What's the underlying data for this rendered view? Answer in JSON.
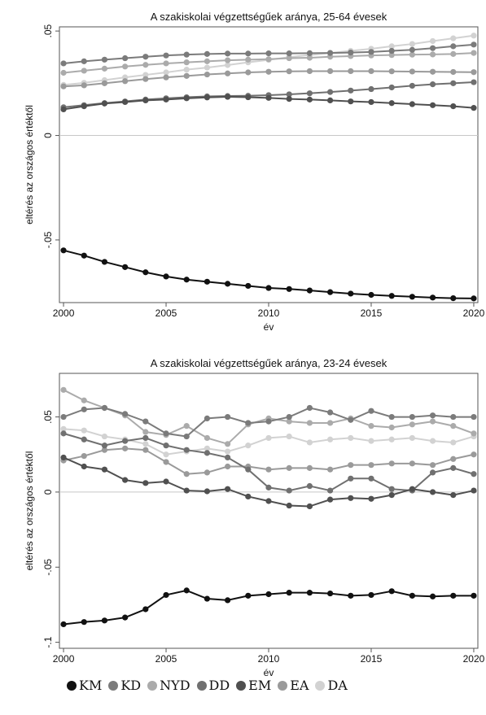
{
  "chart_data": [
    {
      "type": "line",
      "title": "A szakiskolai végzettségűek aránya, 25-64 évesek",
      "xlabel": "év",
      "ylabel": "eltérés az országos értéktől",
      "x": [
        2000,
        2001,
        2002,
        2003,
        2004,
        2005,
        2006,
        2007,
        2008,
        2009,
        2010,
        2011,
        2012,
        2013,
        2014,
        2015,
        2016,
        2017,
        2018,
        2019,
        2020
      ],
      "xticks": [
        2000,
        2005,
        2010,
        2015,
        2020
      ],
      "xtick_labels": [
        "2000",
        "2005",
        "2010",
        "2015",
        "2020"
      ],
      "yticks": [
        -0.05,
        0,
        0.05
      ],
      "ytick_labels": [
        "-.05",
        "0",
        ".05"
      ],
      "ylim": [
        -0.08,
        0.052
      ],
      "xlim": [
        1999.8,
        2020.2
      ],
      "grid": false,
      "series": [
        {
          "name": "KM",
          "color": "#111111",
          "values": [
            -0.055,
            -0.0575,
            -0.0605,
            -0.063,
            -0.0655,
            -0.0675,
            -0.069,
            -0.07,
            -0.071,
            -0.072,
            -0.073,
            -0.0735,
            -0.0742,
            -0.075,
            -0.0757,
            -0.0763,
            -0.0768,
            -0.0772,
            -0.0776,
            -0.0779,
            -0.078
          ]
        },
        {
          "name": "KD",
          "color": "#7b7b7b",
          "values": [
            0.0345,
            0.0355,
            0.0363,
            0.037,
            0.0377,
            0.0383,
            0.0387,
            0.039,
            0.0392,
            0.0392,
            0.0393,
            0.0393,
            0.0394,
            0.0395,
            0.0397,
            0.04,
            0.0405,
            0.041,
            0.0418,
            0.0427,
            0.0435
          ]
        },
        {
          "name": "NYD",
          "color": "#ababab",
          "values": [
            0.03,
            0.031,
            0.032,
            0.033,
            0.0338,
            0.0345,
            0.035,
            0.0355,
            0.036,
            0.0363,
            0.0365,
            0.037,
            0.0372,
            0.0377,
            0.038,
            0.0383,
            0.0385,
            0.0387,
            0.0388,
            0.039,
            0.0395
          ]
        },
        {
          "name": "DD",
          "color": "#707070",
          "values": [
            0.0135,
            0.0145,
            0.0155,
            0.0163,
            0.0172,
            0.0178,
            0.0183,
            0.0187,
            0.0189,
            0.019,
            0.0193,
            0.0197,
            0.0202,
            0.0208,
            0.0215,
            0.0222,
            0.023,
            0.0238,
            0.0245,
            0.025,
            0.0255
          ]
        },
        {
          "name": "EM",
          "color": "#505050",
          "values": [
            0.0125,
            0.014,
            0.0153,
            0.016,
            0.0168,
            0.0172,
            0.0178,
            0.0182,
            0.0185,
            0.0183,
            0.018,
            0.0175,
            0.0172,
            0.0168,
            0.0163,
            0.016,
            0.0155,
            0.015,
            0.0145,
            0.014,
            0.0132
          ]
        },
        {
          "name": "EA",
          "color": "#9a9a9a",
          "values": [
            0.0235,
            0.024,
            0.025,
            0.026,
            0.027,
            0.0278,
            0.0285,
            0.0292,
            0.0297,
            0.0302,
            0.0305,
            0.0307,
            0.0308,
            0.0308,
            0.0308,
            0.0308,
            0.0307,
            0.0306,
            0.0305,
            0.0304,
            0.0303
          ]
        },
        {
          "name": "DA",
          "color": "#d2d2d2",
          "values": [
            0.0242,
            0.0252,
            0.0265,
            0.0278,
            0.029,
            0.0302,
            0.0315,
            0.0325,
            0.0337,
            0.035,
            0.0362,
            0.0375,
            0.0385,
            0.0395,
            0.0405,
            0.0415,
            0.0427,
            0.0438,
            0.0452,
            0.0465,
            0.0478
          ]
        }
      ]
    },
    {
      "type": "line",
      "title": "A szakiskolai végzettségűek aránya, 23-24 évesek",
      "xlabel": "év",
      "ylabel": "eltérés az országos értéktől",
      "x": [
        2000,
        2001,
        2002,
        2003,
        2004,
        2005,
        2006,
        2007,
        2008,
        2009,
        2010,
        2011,
        2012,
        2013,
        2014,
        2015,
        2016,
        2017,
        2018,
        2019,
        2020
      ],
      "xticks": [
        2000,
        2005,
        2010,
        2015,
        2020
      ],
      "xtick_labels": [
        "2000",
        "2005",
        "2010",
        "2015",
        "2020"
      ],
      "yticks": [
        -0.1,
        -0.05,
        0,
        0.05
      ],
      "ytick_labels": [
        "-.1",
        "-.05",
        "0",
        ".05"
      ],
      "ylim": [
        -0.104,
        0.079
      ],
      "xlim": [
        1999.8,
        2020.2
      ],
      "grid": false,
      "series": [
        {
          "name": "KM",
          "color": "#111111",
          "values": [
            -0.088,
            -0.0865,
            -0.0855,
            -0.0835,
            -0.078,
            -0.0685,
            -0.0655,
            -0.071,
            -0.072,
            -0.069,
            -0.068,
            -0.067,
            -0.067,
            -0.0675,
            -0.069,
            -0.0685,
            -0.066,
            -0.069,
            -0.0695,
            -0.069,
            -0.069
          ]
        },
        {
          "name": "KD",
          "color": "#7b7b7b",
          "values": [
            0.05,
            0.055,
            0.056,
            0.052,
            0.047,
            0.039,
            0.037,
            0.049,
            0.05,
            0.046,
            0.047,
            0.05,
            0.056,
            0.053,
            0.048,
            0.054,
            0.05,
            0.05,
            0.051,
            0.05,
            0.05
          ]
        },
        {
          "name": "NYD",
          "color": "#ababab",
          "values": [
            0.068,
            0.061,
            0.056,
            0.051,
            0.04,
            0.038,
            0.044,
            0.036,
            0.032,
            0.045,
            0.049,
            0.047,
            0.046,
            0.046,
            0.049,
            0.044,
            0.043,
            0.045,
            0.047,
            0.044,
            0.039
          ]
        },
        {
          "name": "DD",
          "color": "#707070",
          "values": [
            0.039,
            0.035,
            0.031,
            0.034,
            0.036,
            0.031,
            0.028,
            0.026,
            0.023,
            0.015,
            0.003,
            0.001,
            0.004,
            0.001,
            0.009,
            0.009,
            0.002,
            0.001,
            0.013,
            0.016,
            0.012
          ]
        },
        {
          "name": "EM",
          "color": "#505050",
          "values": [
            0.023,
            0.017,
            0.015,
            0.008,
            0.006,
            0.007,
            0.001,
            0.0005,
            0.002,
            -0.003,
            -0.006,
            -0.009,
            -0.0095,
            -0.005,
            -0.004,
            -0.0045,
            -0.002,
            0.002,
            0.0,
            -0.002,
            0.001
          ]
        },
        {
          "name": "EA",
          "color": "#9a9a9a",
          "values": [
            0.021,
            0.024,
            0.028,
            0.029,
            0.028,
            0.02,
            0.012,
            0.013,
            0.017,
            0.017,
            0.015,
            0.016,
            0.016,
            0.015,
            0.018,
            0.018,
            0.019,
            0.019,
            0.018,
            0.022,
            0.025
          ]
        },
        {
          "name": "DA",
          "color": "#d2d2d2",
          "values": [
            0.042,
            0.041,
            0.037,
            0.035,
            0.032,
            0.025,
            0.027,
            0.029,
            0.027,
            0.031,
            0.036,
            0.037,
            0.033,
            0.035,
            0.036,
            0.034,
            0.035,
            0.036,
            0.034,
            0.033,
            0.037
          ]
        }
      ]
    }
  ],
  "legend": [
    {
      "label": "KM",
      "color": "#111111"
    },
    {
      "label": "KD",
      "color": "#7b7b7b"
    },
    {
      "label": "NYD",
      "color": "#ababab"
    },
    {
      "label": "DD",
      "color": "#707070"
    },
    {
      "label": "EM",
      "color": "#505050"
    },
    {
      "label": "EA",
      "color": "#9a9a9a"
    },
    {
      "label": "DA",
      "color": "#d2d2d2"
    }
  ]
}
